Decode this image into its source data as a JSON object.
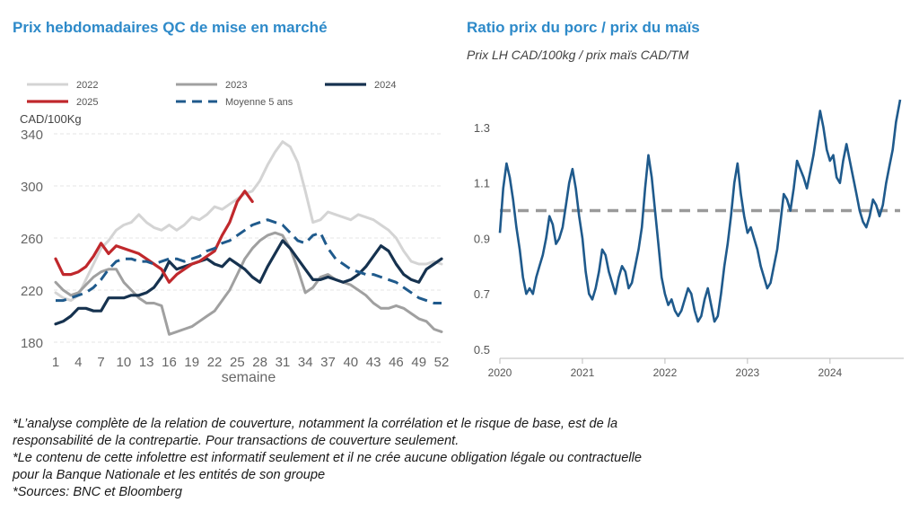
{
  "left_title": "Prix hebdomadaires QC de mise en marché",
  "right_title": "Ratio prix du porc / prix du maïs",
  "right_subtitle": "Prix LH CAD/100kg / prix maïs CAD/TM",
  "notes": [
    "*L’analyse complète de la relation de couverture, notamment la corrélation et le risque de base, est de la",
    "responsabilité de la contrepartie. Pour transactions de couverture seulement.",
    "*Le contenu de cette infolettre est informatif seulement et il ne crée aucune obligation légale ou contractuelle",
    "pour la Banque Nationale et les entités de son groupe",
    "*Sources: BNC et Bloomberg"
  ],
  "colors": {
    "title": "#2e8ac9",
    "s2022": "#d4d4d4",
    "s2023": "#a0a0a0",
    "s2024": "#16324f",
    "s2025": "#c0282c",
    "avg5": "#1f5a8c",
    "ratio": "#1f5a8c",
    "ratio_ref": "#9a9a9a",
    "grid": "#e6e6e6"
  },
  "chart_data": [
    {
      "type": "line",
      "title": "Prix hebdomadaires QC de mise en marché",
      "ylabel": "CAD/100Kg",
      "xlabel": "semaine",
      "ylim": [
        180,
        340
      ],
      "yticks": [
        180,
        220,
        260,
        300,
        340
      ],
      "xlim": [
        1,
        52
      ],
      "xticks": [
        1,
        4,
        7,
        10,
        13,
        16,
        19,
        22,
        25,
        28,
        31,
        34,
        37,
        40,
        43,
        46,
        49,
        52
      ],
      "grid": true,
      "legend_position": "top",
      "series": [
        {
          "name": "2022",
          "x": [
            1,
            2,
            3,
            4,
            5,
            6,
            7,
            8,
            9,
            10,
            11,
            12,
            13,
            14,
            15,
            16,
            17,
            18,
            19,
            20,
            21,
            22,
            23,
            24,
            25,
            26,
            27,
            28,
            29,
            30,
            31,
            32,
            33,
            34,
            35,
            36,
            37,
            38,
            39,
            40,
            41,
            42,
            43,
            44,
            45,
            46,
            47,
            48,
            49,
            50,
            51,
            52
          ],
          "values": [
            218,
            214,
            212,
            216,
            228,
            240,
            252,
            258,
            266,
            270,
            272,
            278,
            272,
            268,
            266,
            270,
            266,
            270,
            276,
            274,
            278,
            284,
            282,
            286,
            290,
            294,
            296,
            304,
            316,
            326,
            334,
            330,
            318,
            296,
            272,
            274,
            280,
            278,
            276,
            274,
            278,
            276,
            274,
            270,
            266,
            260,
            250,
            242,
            240,
            240,
            242,
            240
          ]
        },
        {
          "name": "2023",
          "x": [
            1,
            2,
            3,
            4,
            5,
            6,
            7,
            8,
            9,
            10,
            11,
            12,
            13,
            14,
            15,
            16,
            17,
            18,
            19,
            20,
            21,
            22,
            23,
            24,
            25,
            26,
            27,
            28,
            29,
            30,
            31,
            32,
            33,
            34,
            35,
            36,
            37,
            38,
            39,
            40,
            41,
            42,
            43,
            44,
            45,
            46,
            47,
            48,
            49,
            50,
            51,
            52
          ],
          "values": [
            226,
            220,
            216,
            218,
            224,
            230,
            234,
            236,
            236,
            226,
            220,
            214,
            210,
            210,
            208,
            186,
            188,
            190,
            192,
            196,
            200,
            204,
            212,
            220,
            232,
            244,
            252,
            258,
            262,
            264,
            262,
            252,
            236,
            218,
            222,
            230,
            232,
            228,
            226,
            224,
            220,
            216,
            210,
            206,
            206,
            208,
            206,
            202,
            198,
            196,
            190,
            188
          ]
        },
        {
          "name": "2024",
          "x": [
            1,
            2,
            3,
            4,
            5,
            6,
            7,
            8,
            9,
            10,
            11,
            12,
            13,
            14,
            15,
            16,
            17,
            18,
            19,
            20,
            21,
            22,
            23,
            24,
            25,
            26,
            27,
            28,
            29,
            30,
            31,
            32,
            33,
            34,
            35,
            36,
            37,
            38,
            39,
            40,
            41,
            42,
            43,
            44,
            45,
            46,
            47,
            48,
            49,
            50,
            51,
            52
          ],
          "values": [
            194,
            196,
            200,
            206,
            206,
            204,
            204,
            214,
            214,
            214,
            216,
            216,
            218,
            222,
            230,
            242,
            236,
            238,
            240,
            242,
            244,
            240,
            238,
            244,
            240,
            236,
            230,
            226,
            238,
            248,
            258,
            252,
            244,
            236,
            228,
            228,
            230,
            228,
            226,
            228,
            232,
            238,
            246,
            254,
            250,
            240,
            232,
            228,
            226,
            236,
            240,
            244
          ]
        },
        {
          "name": "2025",
          "x": [
            1,
            2,
            3,
            4,
            5,
            6,
            7,
            8,
            9,
            10,
            11,
            12,
            13,
            14,
            15,
            16,
            17,
            18,
            19,
            20,
            21,
            22,
            23,
            24,
            25,
            26,
            27
          ],
          "values": [
            244,
            232,
            232,
            234,
            238,
            246,
            256,
            248,
            254,
            252,
            250,
            248,
            244,
            240,
            236,
            226,
            232,
            236,
            240,
            242,
            246,
            250,
            262,
            272,
            288,
            296,
            288
          ]
        },
        {
          "name": "Moyenne 5 ans",
          "dashed": true,
          "x": [
            1,
            2,
            3,
            4,
            5,
            6,
            7,
            8,
            9,
            10,
            11,
            12,
            13,
            14,
            15,
            16,
            17,
            18,
            19,
            20,
            21,
            22,
            23,
            24,
            25,
            26,
            27,
            28,
            29,
            30,
            31,
            32,
            33,
            34,
            35,
            36,
            37,
            38,
            39,
            40,
            41,
            42,
            43,
            44,
            45,
            46,
            47,
            48,
            49,
            50,
            51,
            52
          ],
          "values": [
            212,
            212,
            214,
            216,
            218,
            222,
            228,
            236,
            242,
            244,
            244,
            242,
            242,
            240,
            242,
            244,
            244,
            242,
            244,
            246,
            250,
            252,
            256,
            258,
            262,
            266,
            270,
            272,
            274,
            272,
            270,
            264,
            258,
            256,
            262,
            264,
            252,
            244,
            240,
            236,
            234,
            232,
            232,
            230,
            228,
            226,
            222,
            218,
            214,
            212,
            210,
            210
          ]
        }
      ]
    },
    {
      "type": "line",
      "title": "Ratio prix du porc / prix du maïs",
      "subtitle": "Prix LH CAD/100kg / prix maïs CAD/TM",
      "ylim": [
        0.5,
        1.4
      ],
      "yticks": [
        0.5,
        0.7,
        0.9,
        1.1,
        1.3
      ],
      "xlim": [
        2020.0,
        2024.85
      ],
      "xticks": [
        2020,
        2021,
        2022,
        2023,
        2024
      ],
      "grid": false,
      "reference_line": 1.0,
      "series": [
        {
          "x": [
            2020.0,
            2020.04,
            2020.08,
            2020.12,
            2020.16,
            2020.2,
            2020.24,
            2020.28,
            2020.32,
            2020.36,
            2020.4,
            2020.44,
            2020.48,
            2020.52,
            2020.56,
            2020.6,
            2020.64,
            2020.68,
            2020.72,
            2020.76,
            2020.8,
            2020.84,
            2020.88,
            2020.92,
            2020.96,
            2021.0,
            2021.04,
            2021.08,
            2021.12,
            2021.16,
            2021.2,
            2021.24,
            2021.28,
            2021.32,
            2021.36,
            2021.4,
            2021.44,
            2021.48,
            2021.52,
            2021.56,
            2021.6,
            2021.64,
            2021.68,
            2021.72,
            2021.76,
            2021.8,
            2021.84,
            2021.88,
            2021.92,
            2021.96,
            2022.0,
            2022.04,
            2022.08,
            2022.12,
            2022.16,
            2022.2,
            2022.24,
            2022.28,
            2022.32,
            2022.36,
            2022.4,
            2022.44,
            2022.48,
            2022.52,
            2022.56,
            2022.6,
            2022.64,
            2022.68,
            2022.72,
            2022.76,
            2022.8,
            2022.84,
            2022.88,
            2022.92,
            2022.96,
            2023.0,
            2023.04,
            2023.08,
            2023.12,
            2023.16,
            2023.2,
            2023.24,
            2023.28,
            2023.32,
            2023.36,
            2023.4,
            2023.44,
            2023.48,
            2023.52,
            2023.56,
            2023.6,
            2023.64,
            2023.68,
            2023.72,
            2023.76,
            2023.8,
            2023.84,
            2023.88,
            2023.92,
            2023.96,
            2024.0,
            2024.04,
            2024.08,
            2024.12,
            2024.16,
            2024.2,
            2024.24,
            2024.28,
            2024.32,
            2024.36,
            2024.4,
            2024.44,
            2024.48,
            2024.52,
            2024.56,
            2024.6,
            2024.64,
            2024.68,
            2024.72,
            2024.76,
            2024.8,
            2024.85
          ],
          "values": [
            0.92,
            1.08,
            1.17,
            1.12,
            1.04,
            0.94,
            0.86,
            0.76,
            0.7,
            0.72,
            0.7,
            0.76,
            0.8,
            0.84,
            0.9,
            0.98,
            0.95,
            0.88,
            0.9,
            0.94,
            1.02,
            1.1,
            1.15,
            1.08,
            0.98,
            0.9,
            0.78,
            0.7,
            0.68,
            0.72,
            0.78,
            0.86,
            0.84,
            0.78,
            0.74,
            0.7,
            0.76,
            0.8,
            0.78,
            0.72,
            0.74,
            0.8,
            0.86,
            0.94,
            1.08,
            1.2,
            1.12,
            1.0,
            0.88,
            0.76,
            0.7,
            0.66,
            0.68,
            0.64,
            0.62,
            0.64,
            0.68,
            0.72,
            0.7,
            0.64,
            0.6,
            0.62,
            0.68,
            0.72,
            0.66,
            0.6,
            0.62,
            0.7,
            0.8,
            0.88,
            0.98,
            1.1,
            1.17,
            1.06,
            0.98,
            0.92,
            0.94,
            0.9,
            0.86,
            0.8,
            0.76,
            0.72,
            0.74,
            0.8,
            0.86,
            0.96,
            1.06,
            1.04,
            1.0,
            1.08,
            1.18,
            1.15,
            1.12,
            1.08,
            1.14,
            1.2,
            1.28,
            1.36,
            1.3,
            1.22,
            1.18,
            1.2,
            1.12,
            1.1,
            1.18,
            1.24,
            1.18,
            1.12,
            1.06,
            1.0,
            0.96,
            0.94,
            0.98,
            1.04,
            1.02,
            0.98,
            1.02,
            1.1,
            1.16,
            1.22,
            1.32,
            1.4
          ]
        }
      ]
    }
  ]
}
